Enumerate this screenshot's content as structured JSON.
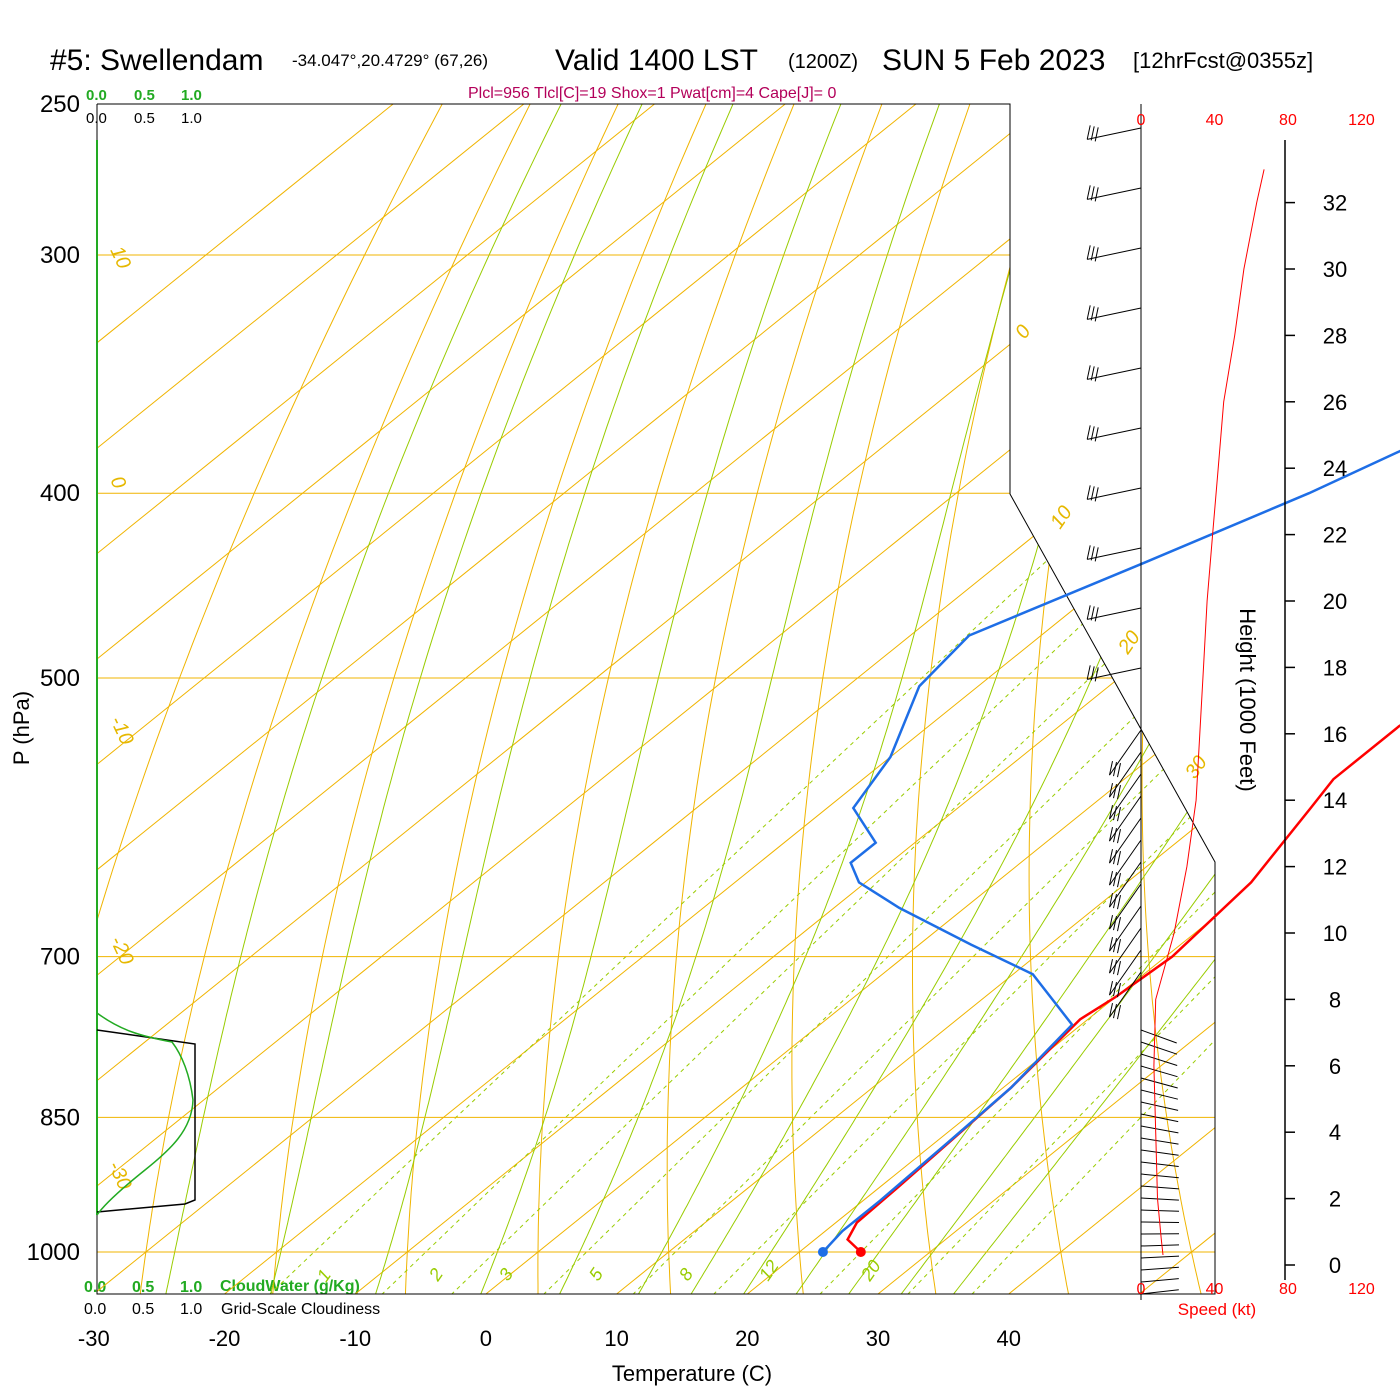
{
  "header": {
    "station": "#5: Swellendam",
    "coords": "-34.047°,20.4729° (67,26)",
    "valid": "Valid 1400 LST",
    "utc": "(1200Z)",
    "date": "SUN 5 Feb 2023",
    "forecast": "[12hrFcst@0355z]",
    "indices": "Plcl=956 Tlcl[C]=19 Shox=1 Pwat[cm]=4 Cape[J]= 0"
  },
  "cloud_scale": {
    "top_green": [
      "0.0",
      "0.5",
      "1.0"
    ],
    "top_black": [
      "0.0",
      "0.5",
      "1.0"
    ],
    "bottom_green": [
      "0.0",
      "0.5",
      "1.0"
    ],
    "bottom_black": [
      "0.0",
      "0.5",
      "1.0"
    ],
    "cloudwater_label": "CloudWater (g/Kg)",
    "cloudiness_label": "Grid-Scale Cloudiness"
  },
  "colors": {
    "temperature": "#ff0000",
    "dewpoint": "#1e6ee6",
    "isobar_isotherm": "#f0b400",
    "dry_adiabat": "#f0b400",
    "moist_adiabat": "#99cc00",
    "mixing_ratio": "#99cc00",
    "cloudwater": "#22aa22",
    "wind_speed": "#ff0000"
  },
  "chart_data": {
    "type": "line",
    "xlabel": "Temperature (C)",
    "ylabel": "P (hPa)",
    "xticks": [
      -30,
      -20,
      -10,
      0,
      10,
      20,
      30,
      40
    ],
    "yticks": [
      250,
      300,
      400,
      500,
      700,
      850,
      1000
    ],
    "ylim": [
      1050,
      250
    ],
    "isotherm_labels": [
      "10",
      "0",
      "-10",
      "-20",
      "-30",
      "0",
      "10",
      "20",
      "30"
    ],
    "mixing_ratio_labels": [
      "1",
      "2",
      "3",
      "5",
      "8",
      "12",
      "20"
    ],
    "series": [
      {
        "role": "temperature",
        "points": [
          [
            24.7,
            1000
          ],
          [
            22.5,
            985
          ],
          [
            21.6,
            965
          ],
          [
            21.4,
            925
          ],
          [
            21.0,
            870
          ],
          [
            20.6,
            820
          ],
          [
            19.4,
            755
          ],
          [
            20.0,
            735
          ],
          [
            20.5,
            700
          ],
          [
            19.5,
            640
          ],
          [
            17.0,
            585
          ],
          [
            16.0,
            565
          ],
          [
            16.0,
            530
          ],
          [
            16.7,
            500
          ],
          [
            16.8,
            470
          ],
          [
            16.2,
            450
          ],
          [
            15.5,
            420
          ],
          [
            13.2,
            395
          ],
          [
            11.0,
            370
          ],
          [
            8.8,
            350
          ],
          [
            7.2,
            330
          ],
          [
            5.3,
            310
          ],
          [
            4.0,
            298
          ],
          [
            2.1,
            280
          ],
          [
            0.3,
            262
          ]
        ]
      },
      {
        "role": "dewpoint",
        "points": [
          [
            21.8,
            1000
          ],
          [
            21.3,
            975
          ],
          [
            21.3,
            940
          ],
          [
            21.0,
            880
          ],
          [
            20.6,
            820
          ],
          [
            19.3,
            760
          ],
          [
            11.5,
            715
          ],
          [
            4.0,
            690
          ],
          [
            -5.0,
            660
          ],
          [
            -10.5,
            640
          ],
          [
            -13.0,
            625
          ],
          [
            -13.0,
            610
          ],
          [
            -18.0,
            585
          ],
          [
            -20.0,
            550
          ],
          [
            -24.5,
            505
          ],
          [
            -25.5,
            475
          ],
          [
            -19.0,
            435
          ],
          [
            -13.0,
            400
          ],
          [
            -10.0,
            380
          ],
          [
            -8.5,
            365
          ],
          [
            -6.0,
            345
          ],
          [
            -3.8,
            328
          ],
          [
            -2.5,
            312
          ],
          [
            -1.0,
            298
          ],
          [
            0.0,
            283
          ],
          [
            -0.5,
            262
          ]
        ]
      }
    ],
    "wind_speed_profile": {
      "xlabel": "Speed (kt)",
      "xticks": [
        0,
        40,
        80,
        120
      ],
      "ylabel": "Height (1000 Feet)",
      "yticks": [
        0,
        2,
        4,
        6,
        8,
        10,
        12,
        14,
        16,
        18,
        20,
        22,
        24,
        26,
        28,
        30,
        32
      ],
      "height_kft": [
        0.3,
        0.8,
        2,
        4,
        6,
        8,
        9,
        10,
        12,
        14,
        16,
        18,
        20,
        22,
        24,
        26,
        28,
        30,
        32,
        33
      ],
      "speed_kt": [
        12,
        11,
        9,
        8,
        7,
        8,
        13,
        18,
        25,
        30,
        32,
        34,
        36,
        39,
        42,
        45,
        51,
        56,
        63,
        67
      ]
    }
  }
}
